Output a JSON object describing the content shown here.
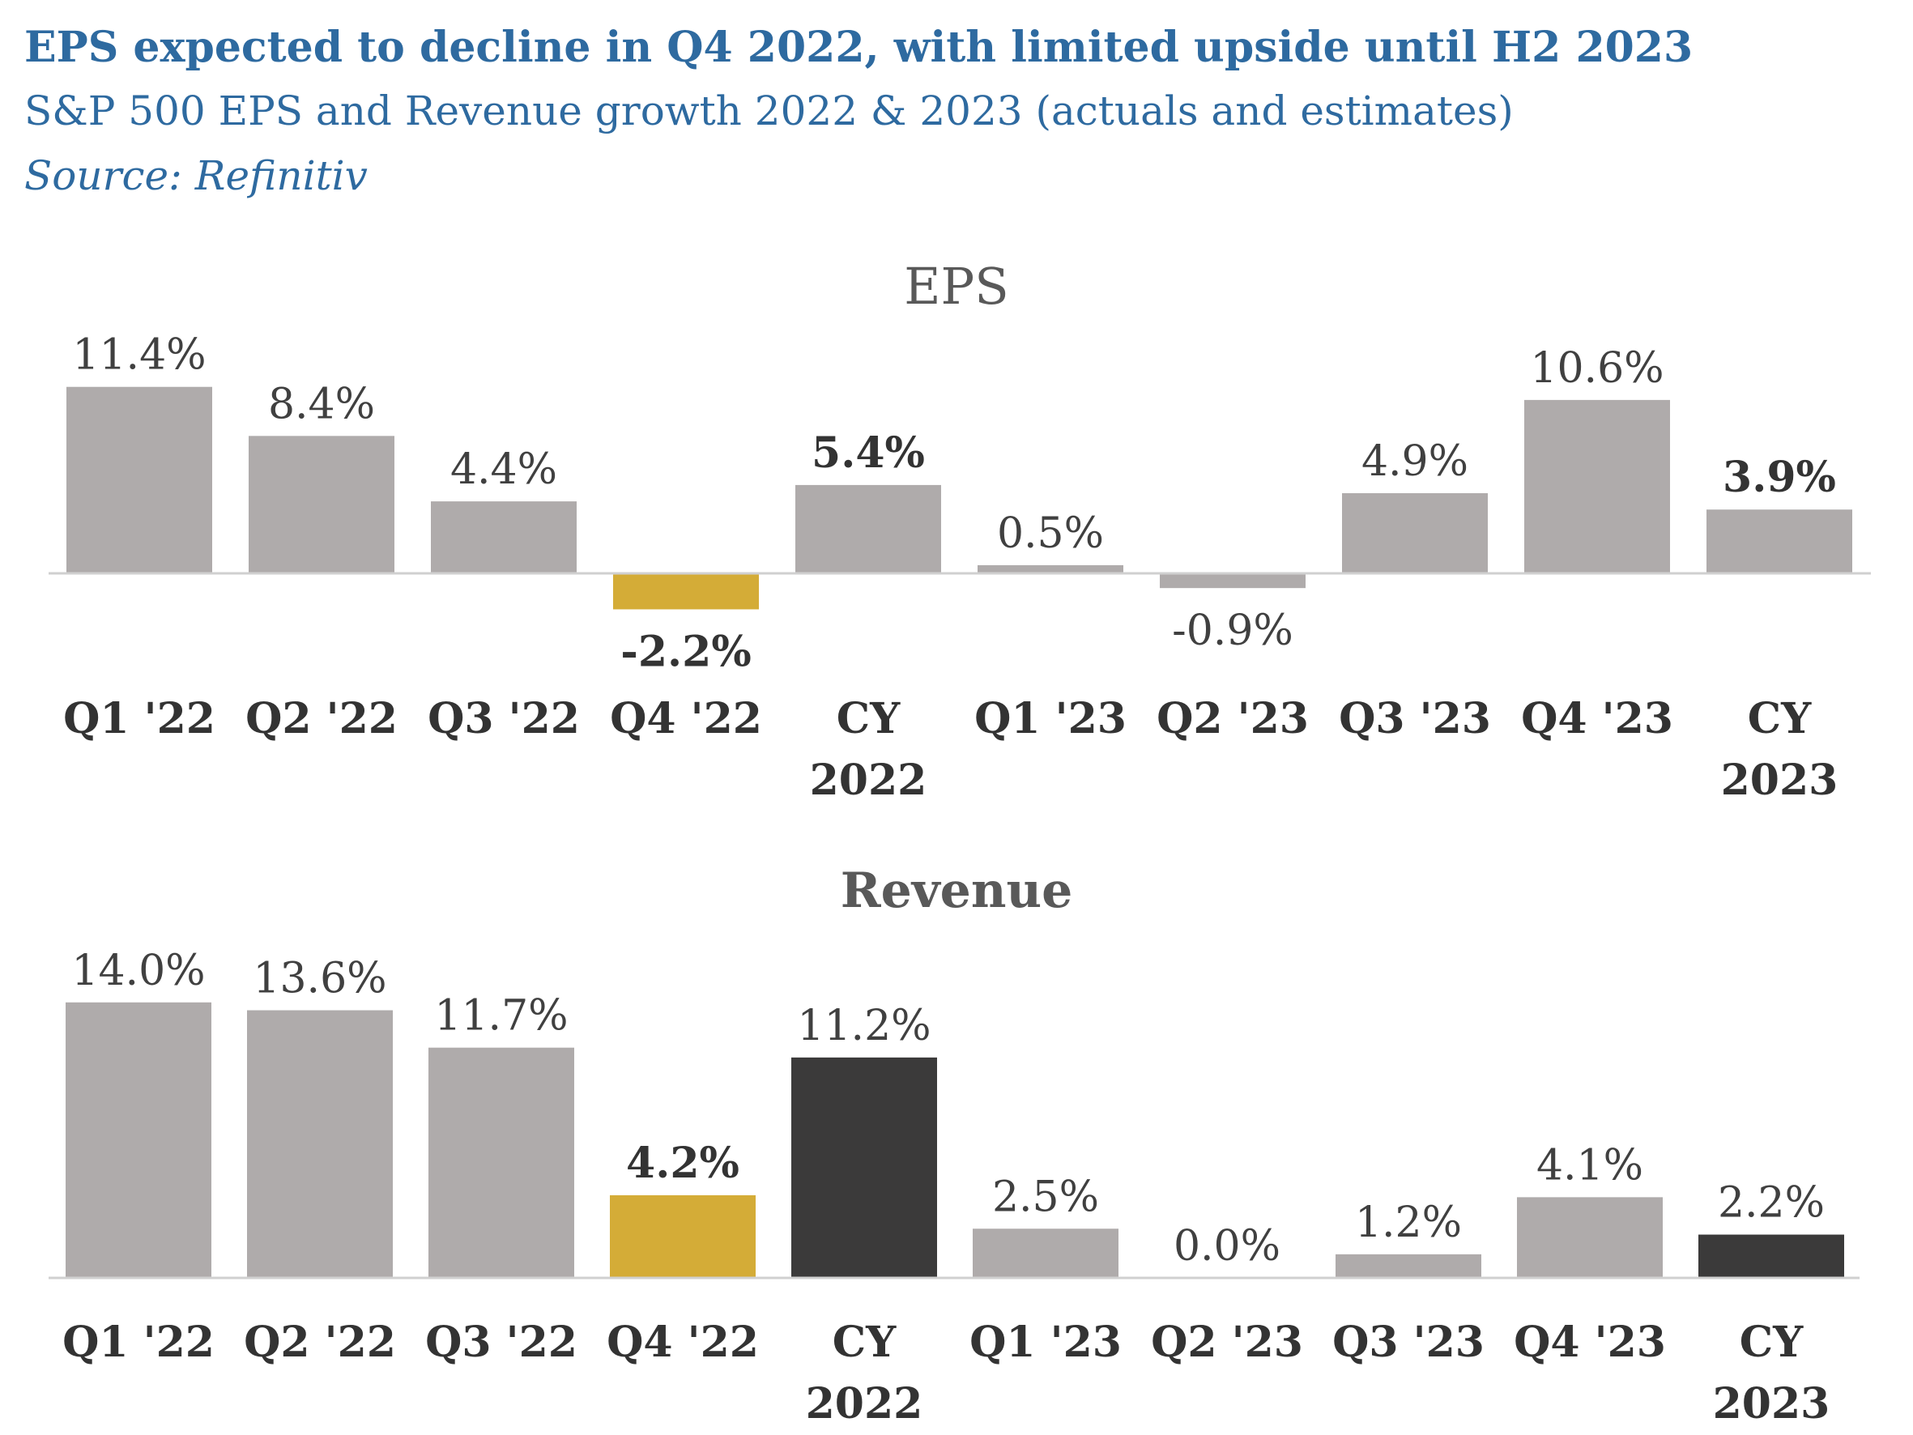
{
  "header": {
    "title": "EPS expected to decline in Q4 2022, with limited upside until H2 2023",
    "subtitle": "S&P 500 EPS and Revenue growth 2022 & 2023 (actuals and estimates)",
    "source": "Source: Refinitiv"
  },
  "colors": {
    "grey": "#afabab",
    "gold": "#d4ac37",
    "dark": "#3b3a3a",
    "title_blue": "#2e6aa0",
    "axis": "#d0d0d0"
  },
  "chart_data": [
    {
      "type": "bar",
      "title": "EPS",
      "title_bold": false,
      "categories": [
        [
          "Q1 '22"
        ],
        [
          "Q2 '22"
        ],
        [
          "Q3 '22"
        ],
        [
          "Q4 '22"
        ],
        [
          "CY",
          "2022"
        ],
        [
          "Q1 '23"
        ],
        [
          "Q2 '23"
        ],
        [
          "Q3 '23"
        ],
        [
          "Q4 '23"
        ],
        [
          "CY",
          "2023"
        ]
      ],
      "values": [
        11.4,
        8.4,
        4.4,
        -2.2,
        5.4,
        0.5,
        -0.9,
        4.9,
        10.6,
        3.9
      ],
      "labels": [
        "11.4%",
        "8.4%",
        "4.4%",
        "-2.2%",
        "5.4%",
        "0.5%",
        "-0.9%",
        "4.9%",
        "10.6%",
        "3.9%"
      ],
      "bold_labels": [
        false,
        false,
        false,
        true,
        true,
        false,
        false,
        false,
        false,
        true
      ],
      "bar_colors": [
        "grey",
        "grey",
        "grey",
        "gold",
        "grey",
        "grey",
        "grey",
        "grey",
        "grey",
        "grey"
      ],
      "unit": "%",
      "grid": false,
      "legend": "none"
    },
    {
      "type": "bar",
      "title": "Revenue",
      "title_bold": true,
      "categories": [
        [
          "Q1 '22"
        ],
        [
          "Q2 '22"
        ],
        [
          "Q3 '22"
        ],
        [
          "Q4 '22"
        ],
        [
          "CY",
          "2022"
        ],
        [
          "Q1 '23"
        ],
        [
          "Q2 '23"
        ],
        [
          "Q3 '23"
        ],
        [
          "Q4 '23"
        ],
        [
          "CY",
          "2023"
        ]
      ],
      "values": [
        14.0,
        13.6,
        11.7,
        4.2,
        11.2,
        2.5,
        0.0,
        1.2,
        4.1,
        2.2
      ],
      "labels": [
        "14.0%",
        "13.6%",
        "11.7%",
        "4.2%",
        "11.2%",
        "2.5%",
        "0.0%",
        "1.2%",
        "4.1%",
        "2.2%"
      ],
      "bold_labels": [
        false,
        false,
        false,
        true,
        false,
        false,
        false,
        false,
        false,
        false
      ],
      "bar_colors": [
        "grey",
        "grey",
        "grey",
        "gold",
        "dark",
        "grey",
        "grey",
        "grey",
        "grey",
        "dark"
      ],
      "unit": "%",
      "grid": false,
      "legend": "none"
    }
  ]
}
